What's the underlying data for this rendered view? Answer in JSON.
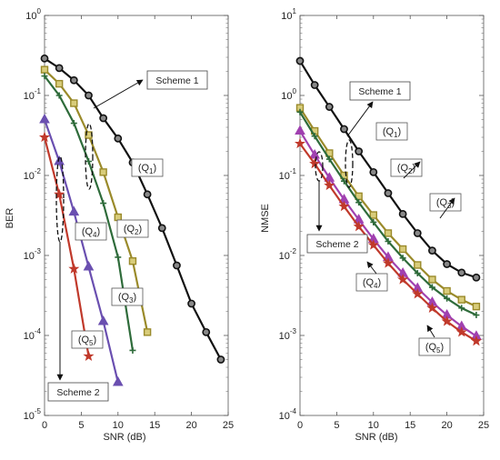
{
  "chart_data": [
    {
      "type": "line",
      "ylabel": "BER",
      "xlabel": "SNR (dB)",
      "xlim": [
        0,
        25
      ],
      "ylim": [
        1e-05,
        1
      ],
      "yscale": "log",
      "xticks": [
        "0",
        "5",
        "10",
        "15",
        "20",
        "25"
      ],
      "yticks": [
        {
          "base": "10",
          "exp": "0"
        },
        {
          "base": "10",
          "exp": "-1"
        },
        {
          "base": "10",
          "exp": "-2"
        },
        {
          "base": "10",
          "exp": "-3"
        },
        {
          "base": "10",
          "exp": "-4"
        },
        {
          "base": "10",
          "exp": "-5"
        }
      ],
      "grid": false,
      "series": [
        {
          "label_base": "(Q",
          "label_sub": "1",
          "label_end": ")",
          "color": "#111111",
          "marker": "circle",
          "x": [
            0,
            2,
            4,
            6,
            8,
            10,
            12,
            14,
            16,
            18,
            20,
            22,
            24
          ],
          "y": [
            0.29,
            0.22,
            0.155,
            0.1,
            0.052,
            0.029,
            0.0145,
            0.0058,
            0.0022,
            0.00075,
            0.00025,
            0.00011,
            5e-05
          ]
        },
        {
          "label_base": "(Q",
          "label_sub": "2",
          "label_end": ")",
          "color": "#9a8a2a",
          "marker": "square",
          "x": [
            0,
            2,
            4,
            6,
            8,
            10,
            12,
            14
          ],
          "y": [
            0.21,
            0.14,
            0.08,
            0.032,
            0.011,
            0.003,
            0.00085,
            0.00011
          ]
        },
        {
          "label_base": "(Q",
          "label_sub": "3",
          "label_end": ")",
          "color": "#2e6b3a",
          "marker": "plus",
          "x": [
            0,
            2,
            4,
            6,
            8,
            10,
            12
          ],
          "y": [
            0.175,
            0.1,
            0.045,
            0.015,
            0.0045,
            0.00095,
            6.5e-05
          ]
        },
        {
          "label_base": "(Q",
          "label_sub": "4",
          "label_end": ")",
          "color": "#6a4fb0",
          "marker": "triangle",
          "x": [
            0,
            2,
            4,
            6,
            8,
            10
          ],
          "y": [
            0.05,
            0.015,
            0.0035,
            0.00072,
            0.00015,
            2.6e-05
          ]
        },
        {
          "label_base": "(Q",
          "label_sub": "5",
          "label_end": ")",
          "color": "#c0392b",
          "marker": "star",
          "x": [
            0,
            2,
            4,
            6
          ],
          "y": [
            0.03,
            0.0058,
            0.00068,
            5.5e-05
          ]
        }
      ],
      "annotations": [
        {
          "text": "Scheme 1"
        },
        {
          "text": "Scheme 2"
        }
      ]
    },
    {
      "type": "line",
      "ylabel": "NMSE",
      "xlabel": "SNR (dB)",
      "xlim": [
        0,
        25
      ],
      "ylim": [
        0.0001,
        10
      ],
      "yscale": "log",
      "xticks": [
        "0",
        "5",
        "10",
        "15",
        "20",
        "25"
      ],
      "yticks": [
        {
          "base": "10",
          "exp": "1"
        },
        {
          "base": "10",
          "exp": "0"
        },
        {
          "base": "10",
          "exp": "-1"
        },
        {
          "base": "10",
          "exp": "-2"
        },
        {
          "base": "10",
          "exp": "-3"
        },
        {
          "base": "10",
          "exp": "-4"
        }
      ],
      "grid": false,
      "series": [
        {
          "label_base": "(Q",
          "label_sub": "1",
          "label_end": ")",
          "color": "#111111",
          "marker": "circle",
          "x": [
            0,
            2,
            4,
            6,
            8,
            10,
            12,
            14,
            16,
            18,
            20,
            22,
            24
          ],
          "y": [
            2.7,
            1.35,
            0.72,
            0.38,
            0.2,
            0.11,
            0.06,
            0.033,
            0.019,
            0.0115,
            0.0078,
            0.0061,
            0.0053
          ]
        },
        {
          "label_base": "(Q",
          "label_sub": "2",
          "label_end": ")",
          "color": "#9a8a2a",
          "marker": "square",
          "x": [
            0,
            2,
            4,
            6,
            8,
            10,
            12,
            14,
            16,
            18,
            20,
            22,
            24
          ],
          "y": [
            0.7,
            0.36,
            0.19,
            0.1,
            0.055,
            0.032,
            0.019,
            0.012,
            0.0076,
            0.005,
            0.0036,
            0.0028,
            0.0023
          ]
        },
        {
          "label_base": "(Q",
          "label_sub": "3",
          "label_end": ")",
          "color": "#2e6b3a",
          "marker": "plus",
          "x": [
            0,
            2,
            4,
            6,
            8,
            10,
            12,
            14,
            16,
            18,
            20,
            22,
            24
          ],
          "y": [
            0.62,
            0.31,
            0.16,
            0.085,
            0.046,
            0.026,
            0.015,
            0.0093,
            0.006,
            0.004,
            0.0029,
            0.0022,
            0.0018
          ]
        },
        {
          "label_base": "(Q",
          "label_sub": "4",
          "label_end": ")",
          "color": "#a040b0",
          "marker": "triangle",
          "x": [
            0,
            2,
            4,
            6,
            8,
            10,
            12,
            14,
            16,
            18,
            20,
            22,
            24
          ],
          "y": [
            0.36,
            0.18,
            0.093,
            0.05,
            0.028,
            0.016,
            0.0095,
            0.006,
            0.0039,
            0.0026,
            0.0018,
            0.0013,
            0.00098
          ]
        },
        {
          "label_base": "(Q",
          "label_sub": "5",
          "label_end": ")",
          "color": "#c0392b",
          "marker": "star",
          "x": [
            0,
            2,
            4,
            6,
            8,
            10,
            12,
            14,
            16,
            18,
            20,
            22,
            24
          ],
          "y": [
            0.25,
            0.14,
            0.075,
            0.041,
            0.023,
            0.0135,
            0.008,
            0.005,
            0.0033,
            0.0022,
            0.0015,
            0.0011,
            0.00085
          ]
        }
      ],
      "annotations": [
        {
          "text": "Scheme 1"
        },
        {
          "text": "Scheme 2"
        }
      ]
    }
  ]
}
